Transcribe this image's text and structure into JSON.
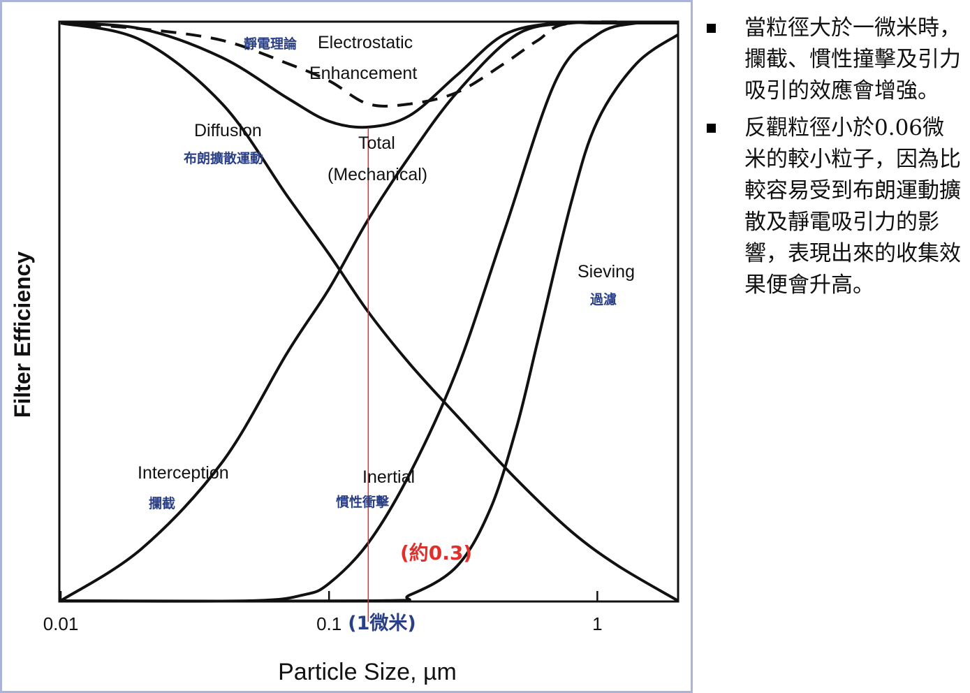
{
  "chart_data": {
    "type": "line",
    "xlabel": "Particle Size, µm",
    "ylabel": "Filter Efficiency",
    "x_scale": "log",
    "xlim": [
      0.01,
      2.0
    ],
    "ylim": [
      0,
      1
    ],
    "x_ticks": [
      {
        "value": 0.01,
        "label": "0.01"
      },
      {
        "value": 0.1,
        "label": "0.1"
      },
      {
        "value": 1,
        "label": "1"
      }
    ],
    "x_tick_note": "(1微米)",
    "series": [
      {
        "name": "Diffusion",
        "style": "solid",
        "x": [
          0.01,
          0.02,
          0.04,
          0.07,
          0.1,
          0.14,
          0.2,
          0.3,
          0.5,
          0.8,
          1.2,
          2.0
        ],
        "y": [
          1.0,
          0.97,
          0.86,
          0.7,
          0.6,
          0.5,
          0.41,
          0.32,
          0.21,
          0.12,
          0.06,
          0.0
        ]
      },
      {
        "name": "Interception",
        "style": "solid",
        "x": [
          0.01,
          0.02,
          0.04,
          0.07,
          0.1,
          0.14,
          0.2,
          0.3,
          0.5,
          0.8,
          1.2,
          2.0
        ],
        "y": [
          0.0,
          0.09,
          0.24,
          0.43,
          0.54,
          0.66,
          0.77,
          0.88,
          0.98,
          1.0,
          1.0,
          1.0
        ]
      },
      {
        "name": "Inertial",
        "style": "solid",
        "x": [
          0.01,
          0.05,
          0.08,
          0.1,
          0.14,
          0.2,
          0.3,
          0.45,
          0.7,
          1.0,
          1.4,
          2.0
        ],
        "y": [
          0.0,
          0.0,
          0.01,
          0.03,
          0.1,
          0.22,
          0.4,
          0.64,
          0.9,
          0.98,
          1.0,
          1.0
        ]
      },
      {
        "name": "Sieving",
        "style": "solid",
        "x": [
          0.01,
          0.15,
          0.2,
          0.3,
          0.4,
          0.5,
          0.6,
          0.8,
          1.0,
          1.4,
          2.0
        ],
        "y": [
          0.0,
          0.0,
          0.01,
          0.06,
          0.16,
          0.3,
          0.45,
          0.69,
          0.83,
          0.93,
          0.98
        ]
      },
      {
        "name": "Total (Mechanical)",
        "style": "solid",
        "x": [
          0.01,
          0.02,
          0.04,
          0.07,
          0.1,
          0.14,
          0.2,
          0.3,
          0.45,
          0.7,
          1.0,
          2.0
        ],
        "y": [
          1.0,
          0.99,
          0.94,
          0.87,
          0.83,
          0.82,
          0.84,
          0.91,
          0.98,
          1.0,
          1.0,
          1.0
        ]
      },
      {
        "name": "Electrostatic Enhancement",
        "style": "dashed",
        "x": [
          0.01,
          0.02,
          0.04,
          0.07,
          0.1,
          0.14,
          0.2,
          0.3,
          0.45,
          0.6,
          0.8,
          2.0
        ],
        "y": [
          1.0,
          0.99,
          0.97,
          0.93,
          0.9,
          0.86,
          0.86,
          0.88,
          0.93,
          0.97,
          1.0,
          1.0
        ]
      }
    ],
    "labels": {
      "electrostatic_zh": "靜電理論",
      "electrostatic_en_1": "Electrostatic",
      "electrostatic_en_2": "Enhancement",
      "diffusion_en": "Diffusion",
      "diffusion_zh": "布朗擴散運動",
      "total_1": "Total",
      "total_2": "(Mechanical)",
      "sieving_en": "Sieving",
      "sieving_zh": "過濾",
      "interception_en": "Interception",
      "interception_zh": "攔截",
      "inertial_en": "Inertial",
      "inertial_zh": "慣性衝擊",
      "crossover_note": "(約0.3)"
    },
    "reference_line": {
      "x": 0.14,
      "color": "#e0302c"
    },
    "colors": {
      "curves": "#111111",
      "annotation_zh": "#2a3f86",
      "highlight": "#e0302c",
      "frame": "#a9b4d8"
    }
  },
  "notes": {
    "bullets": [
      "當粒徑大於一微米時，攔截、慣性撞擊及引力吸引的效應會增強。",
      "反觀粒徑小於0.06微米的較小粒子，因為比較容易受到布朗運動擴散及靜電吸引力的影響，表現出來的收集效果便會升高。"
    ]
  }
}
